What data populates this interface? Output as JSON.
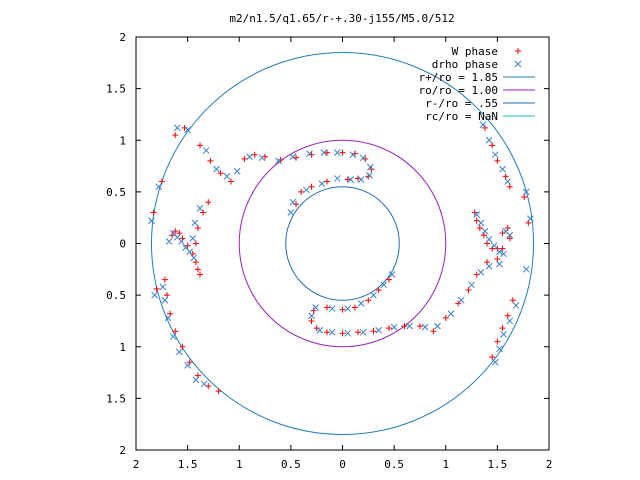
{
  "chart_data": {
    "type": "scatter",
    "title": "m2/n1.5/q1.65/r-+.30-j155/M5.0/512",
    "xlabel": "",
    "ylabel": "",
    "xlim": [
      -2,
      2
    ],
    "ylim": [
      -2,
      2
    ],
    "x_tick_values": [
      -2,
      -1.5,
      -1,
      -0.5,
      0,
      0.5,
      1,
      1.5,
      2
    ],
    "x_tick_labels": [
      "2",
      "1.5",
      "1",
      "0.5",
      "0",
      "0.5",
      "1",
      "1.5",
      "2"
    ],
    "y_tick_values": [
      2,
      1.5,
      1,
      0.5,
      0,
      -0.5,
      -1,
      -1.5,
      -2
    ],
    "y_tick_labels": [
      "2",
      "1.5",
      "1",
      "0.5",
      "0",
      "0.5",
      "1",
      "1.5",
      "2"
    ],
    "grid": false,
    "legend_position": "top-right",
    "legend": [
      {
        "label": "W phase",
        "marker": "plus",
        "color": "#ff0000"
      },
      {
        "label": "drho phase",
        "marker": "cross",
        "color": "#3a7fd0"
      },
      {
        "label": "r+/ro = 1.85",
        "marker": "line",
        "color": "#1f7fbf"
      },
      {
        "label": "ro/ro = 1.00",
        "marker": "line",
        "color": "#a020c0"
      },
      {
        "label": "r-/ro = .55",
        "marker": "line",
        "color": "#1f6fbf"
      },
      {
        "label": "rc/ro = NaN",
        "marker": "line",
        "color": "#20b0c8"
      }
    ],
    "circles": [
      {
        "name": "r+/ro = 1.85",
        "radius": 1.85,
        "color": "#1f7fbf"
      },
      {
        "name": "ro/ro = 1.00",
        "radius": 1.0,
        "color": "#a020c0"
      },
      {
        "name": "r-/ro = .55",
        "radius": 0.55,
        "color": "#1f6fbf"
      }
    ],
    "series": [
      {
        "name": "W phase",
        "color": "#ff0000",
        "marker": "plus",
        "points": [
          [
            -1.83,
            0.3
          ],
          [
            -1.75,
            0.6
          ],
          [
            -1.62,
            1.05
          ],
          [
            -1.53,
            1.12
          ],
          [
            -1.38,
            0.95
          ],
          [
            -1.28,
            0.8
          ],
          [
            -1.18,
            0.68
          ],
          [
            -1.08,
            0.6
          ],
          [
            -0.95,
            0.82
          ],
          [
            -0.85,
            0.86
          ],
          [
            -0.75,
            0.84
          ],
          [
            -0.6,
            0.81
          ],
          [
            -0.45,
            0.83
          ],
          [
            -0.3,
            0.86
          ],
          [
            -0.15,
            0.88
          ],
          [
            0.0,
            0.88
          ],
          [
            0.12,
            0.87
          ],
          [
            0.22,
            0.82
          ],
          [
            0.28,
            0.72
          ],
          [
            0.25,
            0.65
          ],
          [
            0.15,
            0.63
          ],
          [
            0.05,
            0.62
          ],
          [
            -0.15,
            0.6
          ],
          [
            -0.3,
            0.55
          ],
          [
            -0.4,
            0.5
          ],
          [
            -0.45,
            0.38
          ],
          [
            -1.65,
            0.08
          ],
          [
            -1.62,
            0.12
          ],
          [
            -1.58,
            0.1
          ],
          [
            -1.55,
            0.05
          ],
          [
            -1.5,
            -0.02
          ],
          [
            -1.45,
            -0.1
          ],
          [
            -1.42,
            -0.18
          ],
          [
            -1.4,
            -0.25
          ],
          [
            -1.38,
            -0.3
          ],
          [
            -1.42,
            0.0
          ],
          [
            -1.4,
            0.15
          ],
          [
            -1.35,
            0.3
          ],
          [
            -1.3,
            0.4
          ],
          [
            -1.8,
            -0.44
          ],
          [
            -1.72,
            -0.35
          ],
          [
            -1.7,
            -0.5
          ],
          [
            -1.67,
            -0.68
          ],
          [
            -1.62,
            -0.85
          ],
          [
            -1.55,
            -1.0
          ],
          [
            -1.48,
            -1.15
          ],
          [
            -1.4,
            -1.28
          ],
          [
            -1.3,
            -1.38
          ],
          [
            -1.2,
            -1.43
          ],
          [
            1.28,
            0.3
          ],
          [
            1.3,
            0.22
          ],
          [
            1.33,
            0.15
          ],
          [
            1.37,
            0.08
          ],
          [
            1.4,
            0.0
          ],
          [
            1.45,
            -0.05
          ],
          [
            1.5,
            -0.05
          ],
          [
            1.55,
            0.1
          ],
          [
            1.6,
            0.15
          ],
          [
            1.62,
            0.05
          ],
          [
            1.55,
            -0.05
          ],
          [
            1.5,
            -0.15
          ],
          [
            1.38,
            1.12
          ],
          [
            1.45,
            0.95
          ],
          [
            1.5,
            0.8
          ],
          [
            1.58,
            0.65
          ],
          [
            1.62,
            0.55
          ],
          [
            1.76,
            0.45
          ],
          [
            1.8,
            0.2
          ],
          [
            1.4,
            -0.18
          ],
          [
            1.3,
            -0.3
          ],
          [
            1.22,
            -0.45
          ],
          [
            1.12,
            -0.58
          ],
          [
            1.0,
            -0.72
          ],
          [
            0.88,
            -0.85
          ],
          [
            0.75,
            -0.8
          ],
          [
            0.6,
            -0.8
          ],
          [
            0.45,
            -0.82
          ],
          [
            0.3,
            -0.85
          ],
          [
            0.15,
            -0.86
          ],
          [
            0.0,
            -0.87
          ],
          [
            -0.15,
            -0.86
          ],
          [
            -0.25,
            -0.82
          ],
          [
            -0.3,
            -0.75
          ],
          [
            -0.28,
            -0.65
          ],
          [
            -0.15,
            -0.62
          ],
          [
            0.0,
            -0.64
          ],
          [
            0.12,
            -0.62
          ],
          [
            0.25,
            -0.55
          ],
          [
            0.35,
            -0.45
          ],
          [
            0.45,
            -0.35
          ],
          [
            1.65,
            -0.55
          ],
          [
            1.6,
            -0.7
          ],
          [
            1.55,
            -0.82
          ],
          [
            1.5,
            -0.95
          ],
          [
            1.45,
            -1.1
          ]
        ]
      },
      {
        "name": "drho phase",
        "color": "#3a7fd0",
        "marker": "cross",
        "points": [
          [
            -1.85,
            0.22
          ],
          [
            -1.78,
            0.55
          ],
          [
            -1.6,
            1.12
          ],
          [
            -1.5,
            1.1
          ],
          [
            -1.32,
            0.9
          ],
          [
            -1.22,
            0.72
          ],
          [
            -1.12,
            0.65
          ],
          [
            -1.02,
            0.7
          ],
          [
            -0.9,
            0.84
          ],
          [
            -0.78,
            0.83
          ],
          [
            -0.62,
            0.8
          ],
          [
            -0.48,
            0.84
          ],
          [
            -0.32,
            0.87
          ],
          [
            -0.18,
            0.88
          ],
          [
            -0.05,
            0.88
          ],
          [
            0.1,
            0.86
          ],
          [
            0.2,
            0.83
          ],
          [
            0.27,
            0.74
          ],
          [
            0.26,
            0.66
          ],
          [
            0.18,
            0.62
          ],
          [
            0.08,
            0.62
          ],
          [
            -0.05,
            0.63
          ],
          [
            -0.2,
            0.58
          ],
          [
            -0.35,
            0.52
          ],
          [
            -0.48,
            0.4
          ],
          [
            -0.5,
            0.3
          ],
          [
            -1.68,
            0.02
          ],
          [
            -1.64,
            0.1
          ],
          [
            -1.6,
            0.06
          ],
          [
            -1.56,
            0.02
          ],
          [
            -1.52,
            -0.04
          ],
          [
            -1.48,
            -0.08
          ],
          [
            -1.44,
            -0.14
          ],
          [
            -1.45,
            0.05
          ],
          [
            -1.43,
            0.2
          ],
          [
            -1.38,
            0.34
          ],
          [
            -1.82,
            -0.5
          ],
          [
            -1.74,
            -0.42
          ],
          [
            -1.72,
            -0.55
          ],
          [
            -1.69,
            -0.72
          ],
          [
            -1.64,
            -0.9
          ],
          [
            -1.58,
            -1.05
          ],
          [
            -1.5,
            -1.18
          ],
          [
            -1.42,
            -1.32
          ],
          [
            -1.34,
            -1.36
          ],
          [
            1.3,
            0.28
          ],
          [
            1.34,
            0.2
          ],
          [
            1.38,
            0.12
          ],
          [
            1.42,
            0.04
          ],
          [
            1.47,
            -0.02
          ],
          [
            1.52,
            -0.08
          ],
          [
            1.58,
            0.12
          ],
          [
            1.62,
            0.08
          ],
          [
            1.56,
            -0.1
          ],
          [
            1.52,
            -0.2
          ],
          [
            1.36,
            1.15
          ],
          [
            1.42,
            1.0
          ],
          [
            1.48,
            0.86
          ],
          [
            1.55,
            0.72
          ],
          [
            1.6,
            0.6
          ],
          [
            1.78,
            0.5
          ],
          [
            1.82,
            0.24
          ],
          [
            1.78,
            -0.25
          ],
          [
            1.42,
            -0.22
          ],
          [
            1.34,
            -0.28
          ],
          [
            1.25,
            -0.4
          ],
          [
            1.15,
            -0.55
          ],
          [
            1.05,
            -0.68
          ],
          [
            0.92,
            -0.8
          ],
          [
            0.8,
            -0.81
          ],
          [
            0.65,
            -0.8
          ],
          [
            0.5,
            -0.81
          ],
          [
            0.35,
            -0.84
          ],
          [
            0.2,
            -0.86
          ],
          [
            0.05,
            -0.87
          ],
          [
            -0.1,
            -0.86
          ],
          [
            -0.22,
            -0.84
          ],
          [
            -0.3,
            -0.7
          ],
          [
            -0.26,
            -0.62
          ],
          [
            -0.1,
            -0.63
          ],
          [
            0.05,
            -0.63
          ],
          [
            0.18,
            -0.58
          ],
          [
            0.3,
            -0.5
          ],
          [
            0.4,
            -0.4
          ],
          [
            0.48,
            -0.3
          ],
          [
            1.68,
            -0.6
          ],
          [
            1.62,
            -0.75
          ],
          [
            1.56,
            -0.88
          ],
          [
            1.52,
            -1.02
          ],
          [
            1.48,
            -1.15
          ]
        ]
      }
    ]
  }
}
